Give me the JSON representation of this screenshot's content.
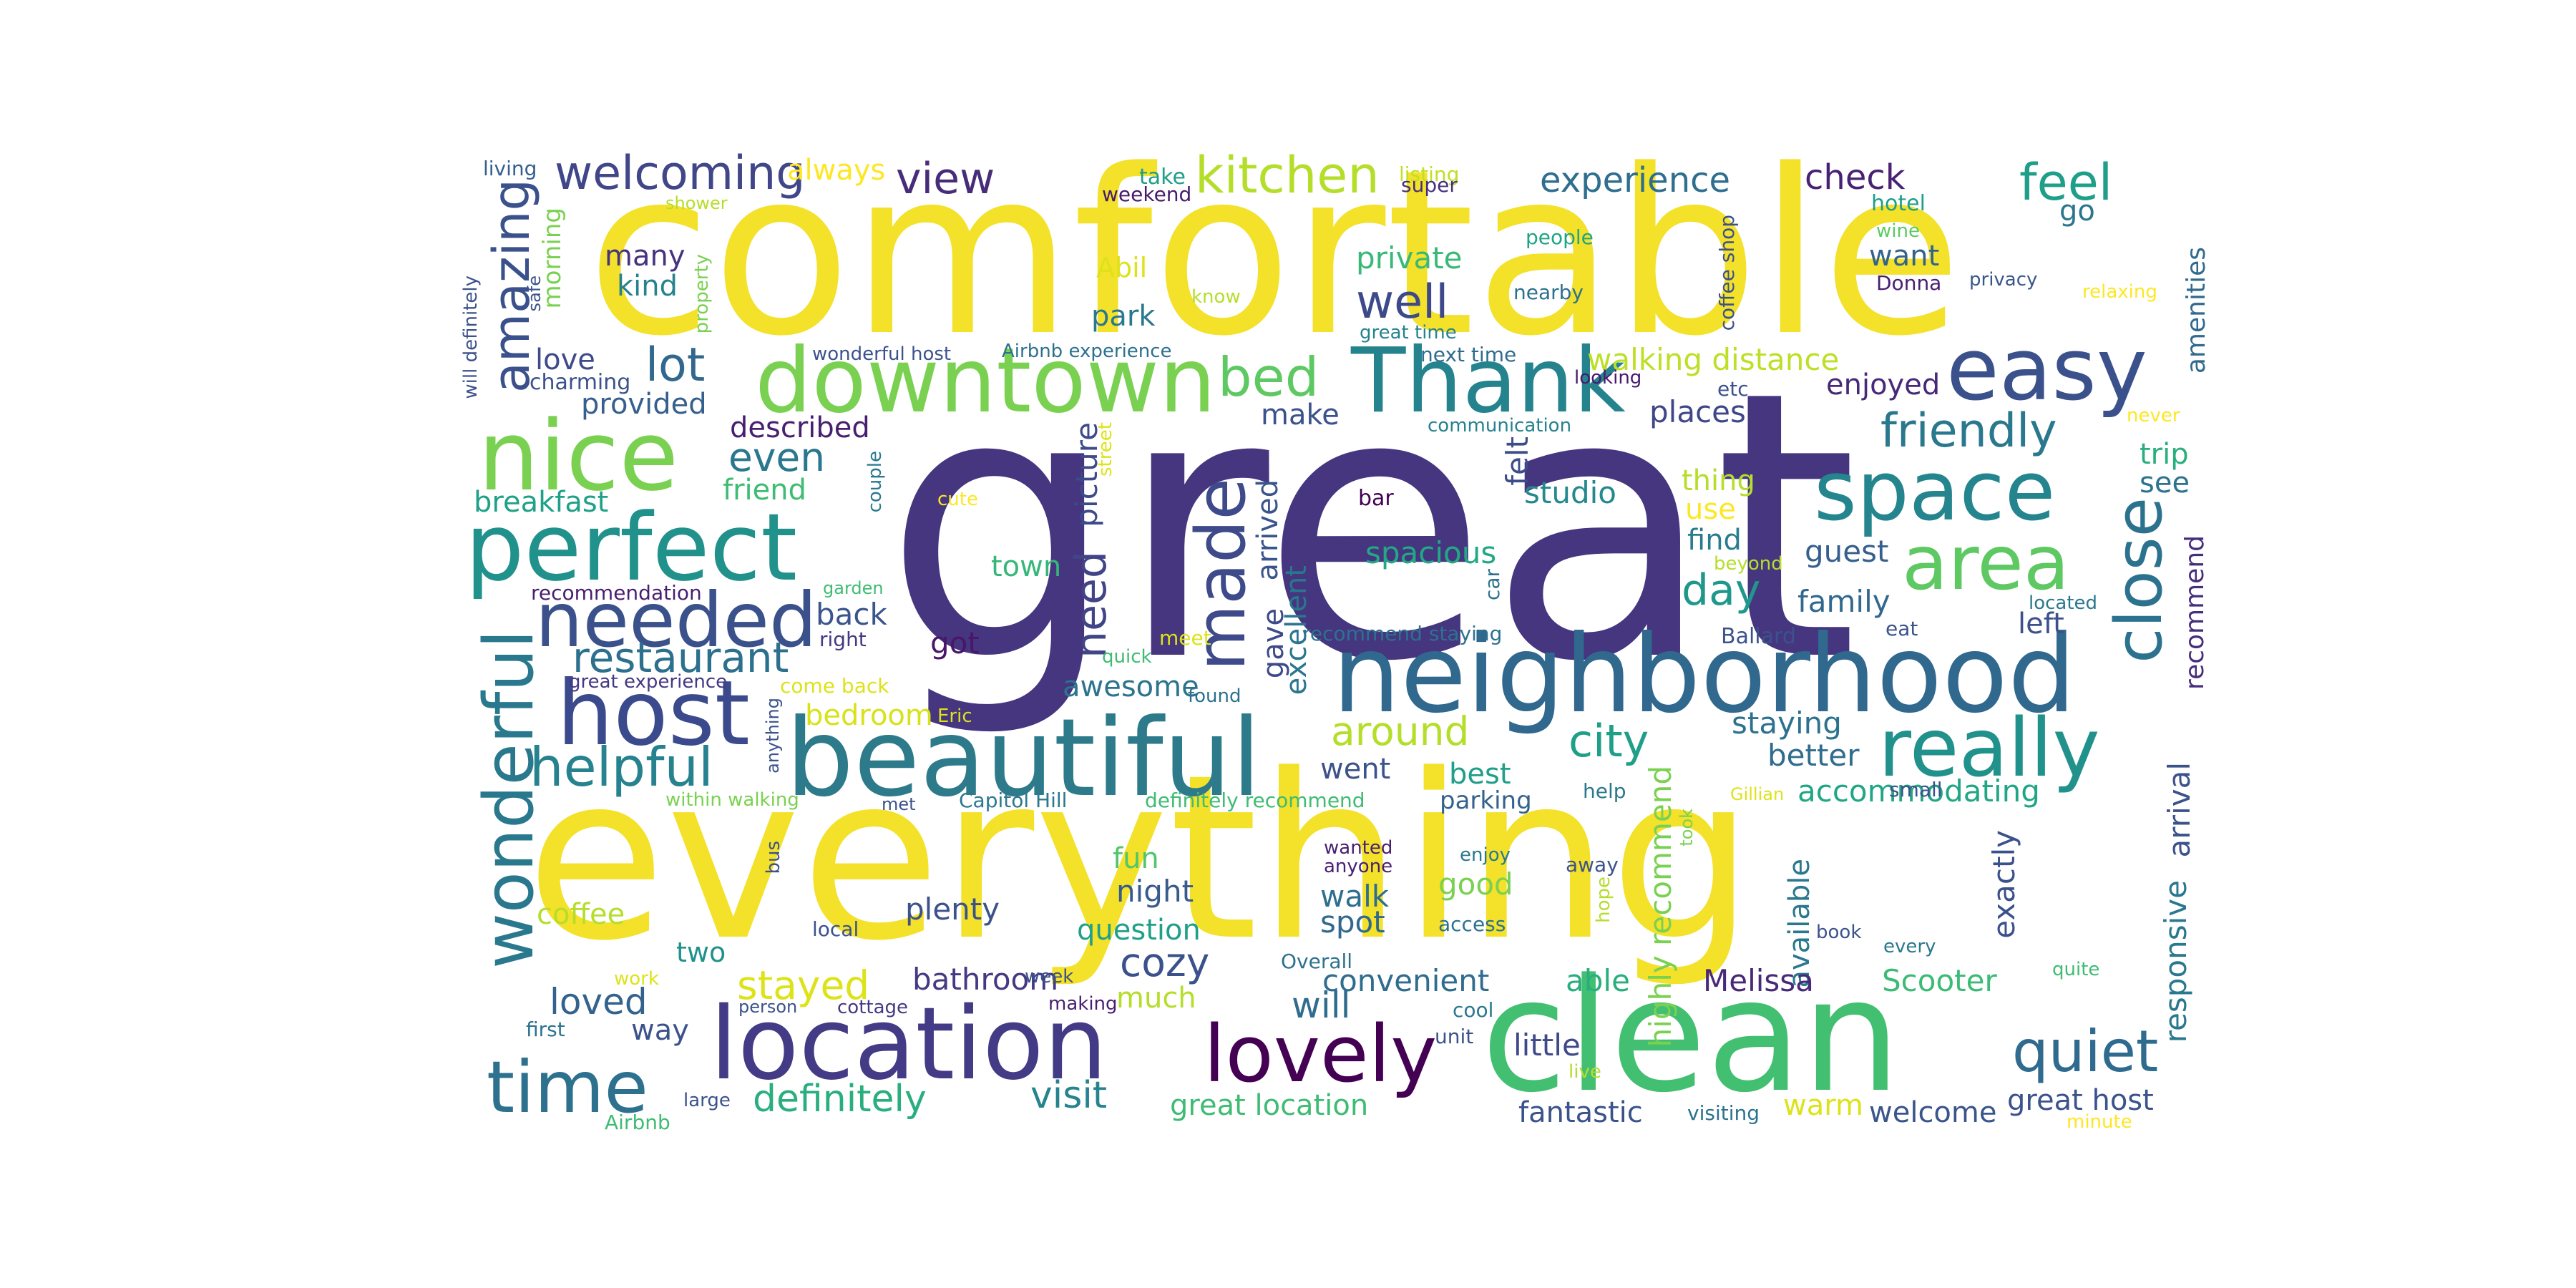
{
  "words": [
    {
      "text": "great",
      "color": "#45367f"
    },
    {
      "text": "comfortable",
      "color": "#f3e12a"
    },
    {
      "text": "everything",
      "color": "#f3e12a"
    },
    {
      "text": "clean",
      "color": "#43bf71"
    },
    {
      "text": "neighborhood",
      "color": "#30688e"
    },
    {
      "text": "beautiful",
      "color": "#2d7a8a"
    },
    {
      "text": "location",
      "color": "#433b85"
    },
    {
      "text": "downtown",
      "color": "#7ad151"
    },
    {
      "text": "Thank",
      "color": "#25838e"
    },
    {
      "text": "nice",
      "color": "#7ad151"
    },
    {
      "text": "perfect",
      "color": "#21918c"
    },
    {
      "text": "host",
      "color": "#3b4a8c"
    },
    {
      "text": "needed",
      "color": "#3b518b"
    },
    {
      "text": "space",
      "color": "#25858e"
    },
    {
      "text": "area",
      "color": "#5ec962"
    },
    {
      "text": "easy",
      "color": "#3b518b"
    },
    {
      "text": "really",
      "color": "#21918c"
    },
    {
      "text": "lovely",
      "color": "#440154"
    },
    {
      "text": "time",
      "color": "#2d718e"
    },
    {
      "text": "wonderful",
      "color": "#2a788e"
    },
    {
      "text": "made",
      "color": "#3e4a89"
    },
    {
      "text": "close",
      "color": "#2c728e"
    },
    {
      "text": "quiet",
      "color": "#2f6b8e"
    },
    {
      "text": "amazing",
      "color": "#3b518b"
    },
    {
      "text": "welcoming",
      "color": "#404688"
    },
    {
      "text": "kitchen",
      "color": "#b5de2b"
    },
    {
      "text": "view",
      "color": "#472c7a"
    },
    {
      "text": "feel",
      "color": "#1f9e89"
    },
    {
      "text": "helpful",
      "color": "#26828e"
    },
    {
      "text": "restaurant",
      "color": "#2d708e"
    },
    {
      "text": "friendly",
      "color": "#2a788e"
    },
    {
      "text": "bed",
      "color": "#5ec962"
    },
    {
      "text": "lot",
      "color": "#31688e"
    },
    {
      "text": "well",
      "color": "#3e4989"
    },
    {
      "text": "experience",
      "color": "#2e6e8e"
    },
    {
      "text": "check",
      "color": "#482173"
    },
    {
      "text": "always",
      "color": "#fde725"
    },
    {
      "text": "private",
      "color": "#38b977"
    },
    {
      "text": "many",
      "color": "#46337f"
    },
    {
      "text": "kind",
      "color": "#26828e"
    },
    {
      "text": "morning",
      "color": "#7ad151"
    },
    {
      "text": "love",
      "color": "#3e4a89"
    },
    {
      "text": "charming",
      "color": "#3b528b"
    },
    {
      "text": "provided",
      "color": "#355f8d"
    },
    {
      "text": "described",
      "color": "#481f70"
    },
    {
      "text": "even",
      "color": "#2a788e"
    },
    {
      "text": "friend",
      "color": "#3fbc73"
    },
    {
      "text": "breakfast",
      "color": "#1fa188"
    },
    {
      "text": "need",
      "color": "#414487"
    },
    {
      "text": "picture",
      "color": "#3e4a89"
    },
    {
      "text": "back",
      "color": "#3a548c"
    },
    {
      "text": "got",
      "color": "#481769"
    },
    {
      "text": "town",
      "color": "#35b779"
    },
    {
      "text": "awesome",
      "color": "#2c738e"
    },
    {
      "text": "bedroom",
      "color": "#d8e219"
    },
    {
      "text": "around",
      "color": "#b5de2b"
    },
    {
      "text": "city",
      "color": "#1f9f88"
    },
    {
      "text": "staying",
      "color": "#2c728e"
    },
    {
      "text": "better",
      "color": "#2f6c8e"
    },
    {
      "text": "day",
      "color": "#1f988b"
    },
    {
      "text": "family",
      "color": "#31688e"
    },
    {
      "text": "left",
      "color": "#3c508b"
    },
    {
      "text": "guest",
      "color": "#355f8d"
    },
    {
      "text": "spacious",
      "color": "#22a884"
    },
    {
      "text": "studio",
      "color": "#23898e"
    },
    {
      "text": "arrived",
      "color": "#3a548c"
    },
    {
      "text": "excellent",
      "color": "#2a768e"
    },
    {
      "text": "gave",
      "color": "#3e4a89"
    },
    {
      "text": "felt",
      "color": "#3d4d8a"
    },
    {
      "text": "thing",
      "color": "#b5de2b"
    },
    {
      "text": "use",
      "color": "#fde725"
    },
    {
      "text": "find",
      "color": "#287c8e"
    },
    {
      "text": "places",
      "color": "#3f4788"
    },
    {
      "text": "enjoyed",
      "color": "#482878"
    },
    {
      "text": "walking distance",
      "color": "#bddf26"
    },
    {
      "text": "make",
      "color": "#3b528b"
    },
    {
      "text": "park",
      "color": "#2a788e"
    },
    {
      "text": "Abil",
      "color": "#dde318"
    },
    {
      "text": "want",
      "color": "#33638d"
    },
    {
      "text": "go",
      "color": "#2a768e"
    },
    {
      "text": "trip",
      "color": "#29af7f"
    },
    {
      "text": "see",
      "color": "#2c738e"
    },
    {
      "text": "recommend",
      "color": "#472d7b"
    },
    {
      "text": "amenities",
      "color": "#306a8e"
    },
    {
      "text": "arrival",
      "color": "#3b528b"
    },
    {
      "text": "responsive",
      "color": "#2a788e"
    },
    {
      "text": "exactly",
      "color": "#3b518b"
    },
    {
      "text": "available",
      "color": "#2a788e"
    },
    {
      "text": "accommodating",
      "color": "#21a685"
    },
    {
      "text": "Scooter",
      "color": "#3bbb75"
    },
    {
      "text": "Melissa",
      "color": "#482878"
    },
    {
      "text": "highly recommend",
      "color": "#7ad151"
    },
    {
      "text": "best",
      "color": "#1f9e89"
    },
    {
      "text": "parking",
      "color": "#33638d"
    },
    {
      "text": "went",
      "color": "#3b528b"
    },
    {
      "text": "cozy",
      "color": "#3b518b"
    },
    {
      "text": "night",
      "color": "#375b8d"
    },
    {
      "text": "walk",
      "color": "#2e6e8e"
    },
    {
      "text": "spot",
      "color": "#31688e"
    },
    {
      "text": "good",
      "color": "#7ad151"
    },
    {
      "text": "fun",
      "color": "#54c568"
    },
    {
      "text": "question",
      "color": "#1fa088"
    },
    {
      "text": "plenty",
      "color": "#3b528b"
    },
    {
      "text": "coffee",
      "color": "#b5de2b"
    },
    {
      "text": "two",
      "color": "#21918c"
    },
    {
      "text": "stayed",
      "color": "#dde318"
    },
    {
      "text": "bathroom",
      "color": "#443983"
    },
    {
      "text": "much",
      "color": "#b5de2b"
    },
    {
      "text": "loved",
      "color": "#33638d"
    },
    {
      "text": "way",
      "color": "#3b528b"
    },
    {
      "text": "will",
      "color": "#2f6c8e"
    },
    {
      "text": "convenient",
      "color": "#2f6c8e"
    },
    {
      "text": "able",
      "color": "#29af7f"
    },
    {
      "text": "little",
      "color": "#3e4989"
    },
    {
      "text": "fantastic",
      "color": "#3b528b"
    },
    {
      "text": "definitely",
      "color": "#29af7f"
    },
    {
      "text": "visit",
      "color": "#25848e"
    },
    {
      "text": "great location",
      "color": "#3fbc73"
    },
    {
      "text": "warm",
      "color": "#dde318"
    },
    {
      "text": "welcome",
      "color": "#3a548c"
    },
    {
      "text": "great host",
      "color": "#3b528b"
    },
    {
      "text": "living",
      "color": "#355f8d"
    },
    {
      "text": "shower",
      "color": "#b5de2b"
    },
    {
      "text": "take",
      "color": "#1f9e89"
    },
    {
      "text": "weekend",
      "color": "#481a6c"
    },
    {
      "text": "listing",
      "color": "#c0df25"
    },
    {
      "text": "super",
      "color": "#472f7d"
    },
    {
      "text": "hotel",
      "color": "#1f9e89"
    },
    {
      "text": "wine",
      "color": "#5ec962"
    },
    {
      "text": "people",
      "color": "#20a486"
    },
    {
      "text": "coffee shop",
      "color": "#3b518b"
    },
    {
      "text": "nearby",
      "color": "#2d718e"
    },
    {
      "text": "know",
      "color": "#b5de2b"
    },
    {
      "text": "Donna",
      "color": "#481f70"
    },
    {
      "text": "privacy",
      "color": "#39568c"
    },
    {
      "text": "relaxing",
      "color": "#fde725"
    },
    {
      "text": "great time",
      "color": "#26828e"
    },
    {
      "text": "Airbnb experience",
      "color": "#2d708e"
    },
    {
      "text": "next time",
      "color": "#2f6c8e"
    },
    {
      "text": "wonderful host",
      "color": "#3b528b"
    },
    {
      "text": "looking",
      "color": "#481a6c"
    },
    {
      "text": "etc",
      "color": "#3b528b"
    },
    {
      "text": "communication",
      "color": "#26828e"
    },
    {
      "text": "property",
      "color": "#7ad151"
    },
    {
      "text": "safe",
      "color": "#3b528b"
    },
    {
      "text": "will definitely",
      "color": "#3b528b"
    },
    {
      "text": "street",
      "color": "#dde318"
    },
    {
      "text": "cute",
      "color": "#fde725"
    },
    {
      "text": "couple",
      "color": "#2a788e"
    },
    {
      "text": "garden",
      "color": "#3fbc73"
    },
    {
      "text": "bar",
      "color": "#440154"
    },
    {
      "text": "beyond",
      "color": "#b5de2b"
    },
    {
      "text": "car",
      "color": "#2c728e"
    },
    {
      "text": "recommendation",
      "color": "#481f70"
    },
    {
      "text": "right",
      "color": "#443983"
    },
    {
      "text": "meet",
      "color": "#dde318"
    },
    {
      "text": "quick",
      "color": "#3fbc73"
    },
    {
      "text": "recommend staying",
      "color": "#2c728e"
    },
    {
      "text": "located",
      "color": "#2a788e"
    },
    {
      "text": "Ballard",
      "color": "#3b528b"
    },
    {
      "text": "eat",
      "color": "#3b528b"
    },
    {
      "text": "never",
      "color": "#fde725"
    },
    {
      "text": "great experience",
      "color": "#443983"
    },
    {
      "text": "come back",
      "color": "#dde318"
    },
    {
      "text": "Eric",
      "color": "#dde318"
    },
    {
      "text": "found",
      "color": "#2c728e"
    },
    {
      "text": "anything",
      "color": "#3b528b"
    },
    {
      "text": "within walking",
      "color": "#7ad151"
    },
    {
      "text": "met",
      "color": "#3b528b"
    },
    {
      "text": "Capitol Hill",
      "color": "#2a788e"
    },
    {
      "text": "definitely recommend",
      "color": "#3fbc73"
    },
    {
      "text": "help",
      "color": "#2a788e"
    },
    {
      "text": "Gillian",
      "color": "#dde318"
    },
    {
      "text": "small",
      "color": "#3b528b"
    },
    {
      "text": "took",
      "color": "#7ad151"
    },
    {
      "text": "bus",
      "color": "#3b528b"
    },
    {
      "text": "wanted",
      "color": "#481f70"
    },
    {
      "text": "anyone",
      "color": "#481f70"
    },
    {
      "text": "enjoy",
      "color": "#2a788e"
    },
    {
      "text": "away",
      "color": "#3b528b"
    },
    {
      "text": "hope",
      "color": "#b5de2b"
    },
    {
      "text": "access",
      "color": "#2c728e"
    },
    {
      "text": "local",
      "color": "#3b528b"
    },
    {
      "text": "book",
      "color": "#3b528b"
    },
    {
      "text": "every",
      "color": "#2a788e"
    },
    {
      "text": "Overall",
      "color": "#2c728e"
    },
    {
      "text": "work",
      "color": "#dde318"
    },
    {
      "text": "week",
      "color": "#3b528b"
    },
    {
      "text": "person",
      "color": "#3b528b"
    },
    {
      "text": "making",
      "color": "#481f70"
    },
    {
      "text": "cottage",
      "color": "#443983"
    },
    {
      "text": "cool",
      "color": "#2a788e"
    },
    {
      "text": "quite",
      "color": "#3fbc73"
    },
    {
      "text": "first",
      "color": "#2c728e"
    },
    {
      "text": "unit",
      "color": "#3b528b"
    },
    {
      "text": "live",
      "color": "#b5de2b"
    },
    {
      "text": "large",
      "color": "#3b528b"
    },
    {
      "text": "Airbnb",
      "color": "#3fbc73"
    },
    {
      "text": "visiting",
      "color": "#2c728e"
    },
    {
      "text": "minute",
      "color": "#fde725"
    }
  ]
}
